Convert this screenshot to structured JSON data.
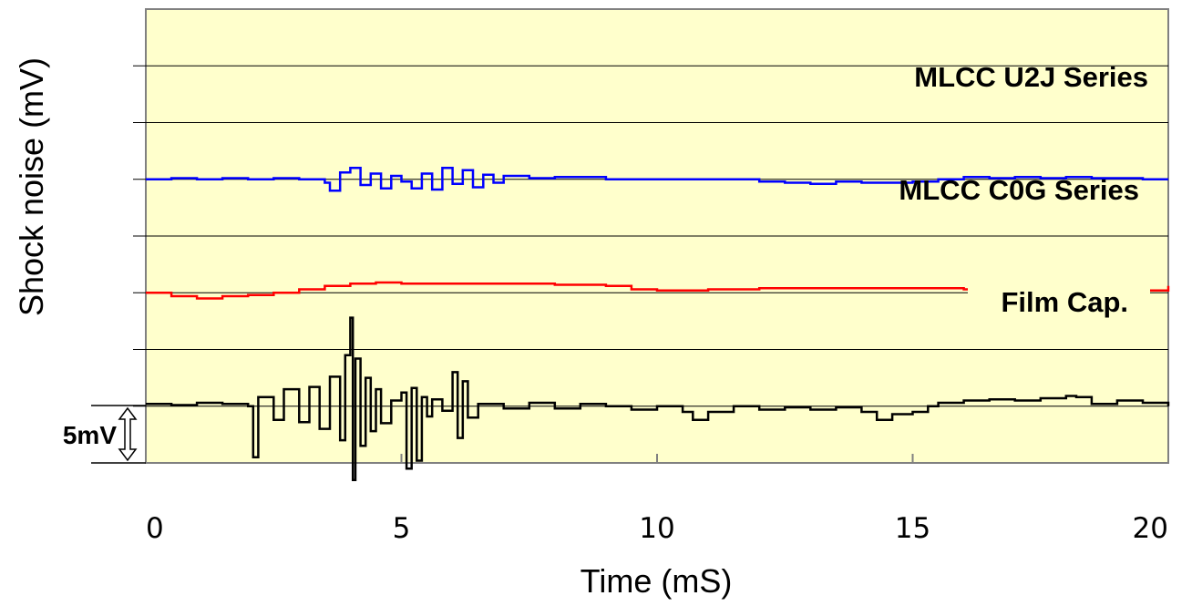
{
  "chart_data": {
    "type": "line",
    "title": "",
    "xlabel": "Time (mS)",
    "ylabel": "Shock noise (mV)",
    "xlim": [
      0,
      20
    ],
    "x_ticks": [
      "0",
      "5",
      "10",
      "15",
      "20"
    ],
    "scale_bar": {
      "label": "5mV",
      "value_mV": 5
    },
    "background": "#ffffcc",
    "grid": "horizontal",
    "series": [
      {
        "name": "MLCC U2J Series",
        "color": "#0000ff",
        "baseline_mV": 0,
        "x": [
          0,
          0.5,
          1,
          1.5,
          2,
          2.5,
          3,
          3.5,
          3.6,
          3.8,
          4,
          4.2,
          4.4,
          4.6,
          4.8,
          5,
          5.2,
          5.4,
          5.6,
          5.8,
          6,
          6.2,
          6.4,
          6.6,
          6.8,
          7,
          7.5,
          8,
          9,
          10,
          11,
          12,
          12.5,
          13,
          13.5,
          14,
          14.5,
          15,
          15.5,
          16,
          16.5,
          17,
          17.5,
          18,
          18.5,
          19,
          19.5,
          20
        ],
        "y": [
          0,
          0.1,
          0,
          0.1,
          0,
          0.1,
          0,
          -0.3,
          -1.0,
          0.6,
          1.0,
          -0.5,
          0.5,
          -0.8,
          0.3,
          -0.2,
          -0.8,
          0.5,
          -0.9,
          1.0,
          -0.4,
          0.8,
          -0.7,
          0.4,
          -0.3,
          0.3,
          0.1,
          0.2,
          0,
          0,
          0,
          -0.2,
          -0.3,
          -0.4,
          -0.2,
          -0.3,
          -0.3,
          -0.2,
          0,
          0.2,
          0.1,
          0.2,
          0.1,
          0.2,
          0.1,
          0.1,
          0,
          0
        ]
      },
      {
        "name": "MLCC C0G Series",
        "color": "#ff0000",
        "baseline_mV": -10,
        "x": [
          0,
          0.5,
          1,
          1.5,
          2,
          2.5,
          3,
          3.5,
          4,
          4.5,
          5,
          6,
          7,
          8,
          9,
          9.5,
          10,
          11,
          12,
          13,
          14,
          15,
          16,
          17,
          17.5,
          18,
          18.5,
          19,
          19.5,
          20
        ],
        "y": [
          0,
          -0.3,
          -0.5,
          -0.3,
          -0.2,
          0,
          0.3,
          0.6,
          0.8,
          0.9,
          0.8,
          0.8,
          0.8,
          0.7,
          0.6,
          0.3,
          0.2,
          0.3,
          0.4,
          0.4,
          0.4,
          0.4,
          0.3,
          0.3,
          0.2,
          0,
          -0.2,
          0,
          0.2,
          0.6
        ]
      },
      {
        "name": "Film Cap.",
        "color": "#000000",
        "baseline_mV": -20,
        "x": [
          0,
          0.5,
          1,
          1.5,
          2,
          2.1,
          2.2,
          2.5,
          2.7,
          3,
          3.2,
          3.4,
          3.6,
          3.8,
          3.9,
          4,
          4.05,
          4.1,
          4.2,
          4.3,
          4.4,
          4.5,
          4.6,
          4.8,
          5,
          5.1,
          5.2,
          5.3,
          5.4,
          5.5,
          5.6,
          5.8,
          6,
          6.1,
          6.2,
          6.3,
          6.5,
          7,
          7.5,
          8,
          8.5,
          9,
          9.5,
          10,
          10.5,
          10.7,
          11,
          11.5,
          12,
          12.5,
          13,
          13.5,
          14,
          14.3,
          14.6,
          15,
          15.3,
          15.5,
          16,
          16.5,
          17,
          17.5,
          18,
          18.2,
          18.5,
          19,
          19.5,
          20
        ],
        "y": [
          0.2,
          0.1,
          0.3,
          0.2,
          0,
          -4.5,
          0.8,
          -1.2,
          1.5,
          -1.4,
          1.7,
          -2.0,
          2.6,
          -3.0,
          4.5,
          7.8,
          -6.5,
          4.2,
          -3.5,
          2.5,
          -2.2,
          1.5,
          -1.5,
          0.5,
          1.2,
          -5.5,
          1.6,
          -4.8,
          0.8,
          -0.9,
          0.6,
          -0.4,
          3.0,
          -2.8,
          2.2,
          -1.0,
          0.2,
          -0.2,
          0.3,
          -0.2,
          0.2,
          0,
          -0.3,
          0,
          -0.5,
          -1.2,
          -0.5,
          0,
          -0.3,
          -0.1,
          -0.3,
          -0.1,
          -0.5,
          -1.2,
          -0.7,
          -0.5,
          0,
          0.3,
          0.5,
          0.6,
          0.5,
          0.7,
          0.9,
          0.8,
          0.2,
          0.5,
          0.3,
          0
        ]
      }
    ]
  }
}
